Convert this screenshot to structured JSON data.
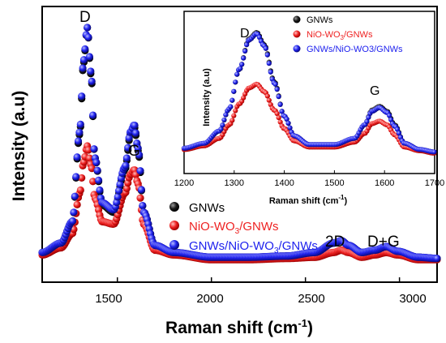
{
  "chart_data": [
    {
      "type": "scatter",
      "title": "",
      "xlabel": "Raman shift (cm⁻¹)",
      "ylabel": "Intensity (a.u)",
      "xlim": [
        1100,
        3200
      ],
      "ylim": [
        0,
        1
      ],
      "yticks_shown": false,
      "xticks": [
        1500,
        2000,
        2500,
        3000
      ],
      "legend_position": "lower-left",
      "peak_labels": [
        {
          "text": "D",
          "x": 1340,
          "y": 1.0
        },
        {
          "text": "G",
          "x": 1590,
          "y": 0.55
        },
        {
          "text": "2D",
          "x": 2690,
          "y": 0.12
        },
        {
          "text": "D+G",
          "x": 2920,
          "y": 0.12
        }
      ],
      "series": [
        {
          "name": "GNWs",
          "color": "#000000",
          "x": [
            1100,
            1200,
            1260,
            1300,
            1320,
            1340,
            1360,
            1380,
            1420,
            1480,
            1540,
            1570,
            1590,
            1610,
            1640,
            1700,
            1800,
            2000,
            2200,
            2400,
            2550,
            2650,
            2690,
            2730,
            2800,
            2870,
            2930,
            2990,
            3100,
            3200
          ],
          "y": [
            0.05,
            0.09,
            0.18,
            0.55,
            0.85,
            1.0,
            0.8,
            0.45,
            0.25,
            0.22,
            0.4,
            0.55,
            0.58,
            0.48,
            0.22,
            0.08,
            0.05,
            0.03,
            0.03,
            0.035,
            0.05,
            0.09,
            0.1,
            0.08,
            0.05,
            0.06,
            0.075,
            0.055,
            0.03,
            0.025
          ]
        },
        {
          "name": "NiO-WO₃/GNWs",
          "color": "#ee2222",
          "x": [
            1100,
            1200,
            1260,
            1300,
            1320,
            1340,
            1360,
            1380,
            1420,
            1480,
            1540,
            1570,
            1590,
            1610,
            1640,
            1700,
            1800,
            2000,
            2200,
            2400,
            2550,
            2650,
            2690,
            2730,
            2800,
            2870,
            2930,
            2990,
            3100,
            3200
          ],
          "y": [
            0.04,
            0.07,
            0.13,
            0.3,
            0.43,
            0.5,
            0.42,
            0.28,
            0.18,
            0.17,
            0.3,
            0.38,
            0.4,
            0.34,
            0.17,
            0.06,
            0.04,
            0.02,
            0.02,
            0.025,
            0.03,
            0.05,
            0.06,
            0.05,
            0.03,
            0.04,
            0.05,
            0.04,
            0.02,
            0.02
          ]
        },
        {
          "name": "GNWs/NiO-WO₃/GNWs",
          "color": "#1f22ee",
          "x": [
            1100,
            1200,
            1260,
            1300,
            1320,
            1340,
            1360,
            1380,
            1420,
            1480,
            1540,
            1570,
            1590,
            1610,
            1640,
            1700,
            1800,
            2000,
            2200,
            2400,
            2550,
            2650,
            2690,
            2730,
            2800,
            2870,
            2930,
            2990,
            3100,
            3200
          ],
          "y": [
            0.05,
            0.09,
            0.18,
            0.56,
            0.86,
            1.0,
            0.81,
            0.45,
            0.26,
            0.23,
            0.41,
            0.56,
            0.59,
            0.49,
            0.22,
            0.08,
            0.05,
            0.03,
            0.03,
            0.035,
            0.05,
            0.09,
            0.1,
            0.08,
            0.05,
            0.06,
            0.075,
            0.055,
            0.03,
            0.025
          ]
        }
      ]
    },
    {
      "type": "scatter",
      "title": "",
      "xlabel": "Raman shift (cm⁻¹)",
      "ylabel": "Intensity (a.u)",
      "xlim": [
        1200,
        1700
      ],
      "ylim": [
        0,
        1
      ],
      "yticks_shown": false,
      "xticks": [
        1200,
        1300,
        1400,
        1500,
        1600,
        1700
      ],
      "legend_position": "top-right",
      "peak_labels": [
        {
          "text": "D",
          "x": 1340,
          "y": 1.0
        },
        {
          "text": "G",
          "x": 1590,
          "y": 0.45
        }
      ],
      "series": [
        {
          "name": "GNWs",
          "color": "#000000",
          "x": [
            1200,
            1240,
            1270,
            1290,
            1310,
            1330,
            1345,
            1360,
            1380,
            1400,
            1420,
            1450,
            1500,
            1540,
            1560,
            1575,
            1590,
            1605,
            1620,
            1640,
            1670,
            1700
          ],
          "y": [
            0.06,
            0.1,
            0.2,
            0.38,
            0.7,
            0.95,
            1.0,
            0.9,
            0.6,
            0.32,
            0.16,
            0.09,
            0.09,
            0.14,
            0.25,
            0.37,
            0.4,
            0.36,
            0.25,
            0.1,
            0.05,
            0.03
          ]
        },
        {
          "name": "NiO-WO₃/GNWs",
          "color": "#ee2222",
          "x": [
            1200,
            1240,
            1270,
            1290,
            1310,
            1330,
            1345,
            1360,
            1380,
            1400,
            1420,
            1450,
            1500,
            1540,
            1560,
            1575,
            1590,
            1605,
            1620,
            1640,
            1670,
            1700
          ],
          "y": [
            0.05,
            0.08,
            0.14,
            0.25,
            0.42,
            0.55,
            0.58,
            0.52,
            0.37,
            0.22,
            0.12,
            0.07,
            0.07,
            0.11,
            0.18,
            0.26,
            0.28,
            0.25,
            0.17,
            0.07,
            0.04,
            0.02
          ]
        },
        {
          "name": "GNWs/NiO-WO3/GNWs",
          "color": "#1f22ee",
          "x": [
            1200,
            1240,
            1270,
            1290,
            1310,
            1330,
            1345,
            1360,
            1380,
            1400,
            1420,
            1450,
            1500,
            1540,
            1560,
            1575,
            1590,
            1605,
            1620,
            1640,
            1670,
            1700
          ],
          "y": [
            0.06,
            0.1,
            0.2,
            0.38,
            0.7,
            0.94,
            0.99,
            0.89,
            0.59,
            0.32,
            0.16,
            0.09,
            0.09,
            0.14,
            0.25,
            0.36,
            0.39,
            0.35,
            0.24,
            0.1,
            0.05,
            0.03
          ]
        }
      ]
    }
  ],
  "main": {
    "ylabel": "Intensity (a.u)",
    "xlabel_main": "Raman shift (cm",
    "xlabel_sup": "-1",
    "xlabel_end": ")",
    "ticks": [
      "1500",
      "2000",
      "2500",
      "3000"
    ],
    "peaks": [
      "D",
      "G",
      "2D",
      "D+G"
    ],
    "legend": [
      {
        "main": "GNWs",
        "sub": "",
        "tail": ""
      },
      {
        "main": "NiO-WO",
        "sub": "3",
        "tail": "/GNWs"
      },
      {
        "main": "GNWs/NiO-WO",
        "sub": "3",
        "tail": "/GNWs"
      }
    ]
  },
  "inset": {
    "ylabel": "Intensity (a.u)",
    "xlabel_main": "Raman shift (cm",
    "xlabel_sup": "-1",
    "xlabel_end": ")",
    "ticks": [
      "1200",
      "1300",
      "1400",
      "1500",
      "1600",
      "1700"
    ],
    "peaks": [
      "D",
      "G"
    ],
    "legend": [
      {
        "main": "GNWs",
        "sub": "",
        "tail": ""
      },
      {
        "main": "NiO-WO",
        "sub": "3",
        "tail": "/GNWs"
      },
      {
        "main": "GNWs/NiO-WO3/GNWs",
        "sub": "",
        "tail": ""
      }
    ]
  }
}
